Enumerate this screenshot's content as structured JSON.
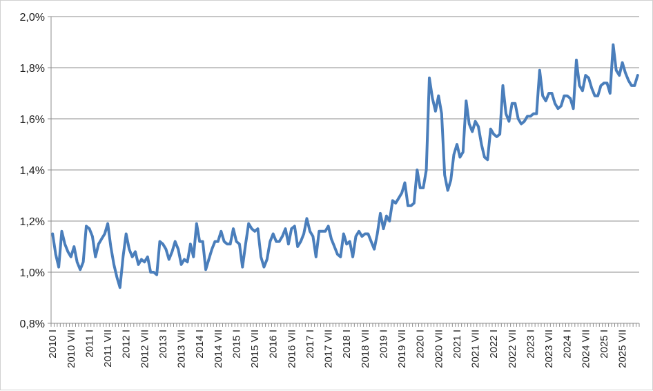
{
  "chart_data": {
    "type": "line",
    "title": "",
    "xlabel": "",
    "ylabel": "",
    "ylim": [
      0.8,
      2.0
    ],
    "y_tick_labels": [
      "0,8%",
      "1,0%",
      "1,2%",
      "1,4%",
      "1,6%",
      "1,8%",
      "2,0%"
    ],
    "y_tick_values": [
      0.8,
      1.0,
      1.2,
      1.4,
      1.6,
      1.8,
      2.0
    ],
    "x_tick_labels": [
      "2010 I",
      "2010 VII",
      "2011 I",
      "2011 VII",
      "2012 I",
      "2012 VII",
      "2013 I",
      "2013 VII",
      "2014 I",
      "2014 VII",
      "2015 I",
      "2015 VII",
      "2016 I",
      "2016 VII",
      "2017 I",
      "2017 VII",
      "2018 I",
      "2018 VII",
      "2019 I",
      "2019 VII",
      "2020 I",
      "2020 VII",
      "2021 I",
      "2021 VII",
      "2022 I",
      "2022 VII",
      "2023 I",
      "2023 VII",
      "2024 I",
      "2024 VII",
      "2025 I",
      "2025 VII"
    ],
    "grid": true,
    "legend": "none",
    "series_color": "#4a7ebb",
    "series": [
      {
        "values": [
          1.15,
          1.07,
          1.02,
          1.16,
          1.11,
          1.08,
          1.06,
          1.1,
          1.04,
          1.01,
          1.04,
          1.18,
          1.17,
          1.14,
          1.06,
          1.11,
          1.13,
          1.15,
          1.19,
          1.1,
          1.03,
          0.98,
          0.94,
          1.06,
          1.15,
          1.09,
          1.06,
          1.08,
          1.03,
          1.05,
          1.04,
          1.06,
          1.0,
          1.0,
          0.99,
          1.12,
          1.11,
          1.09,
          1.05,
          1.08,
          1.12,
          1.09,
          1.03,
          1.05,
          1.04,
          1.11,
          1.06,
          1.19,
          1.12,
          1.12,
          1.01,
          1.05,
          1.09,
          1.12,
          1.12,
          1.16,
          1.12,
          1.11,
          1.11,
          1.17,
          1.12,
          1.11,
          1.02,
          1.11,
          1.19,
          1.17,
          1.16,
          1.17,
          1.06,
          1.02,
          1.05,
          1.12,
          1.15,
          1.12,
          1.12,
          1.14,
          1.17,
          1.11,
          1.17,
          1.18,
          1.1,
          1.12,
          1.15,
          1.21,
          1.16,
          1.14,
          1.06,
          1.16,
          1.16,
          1.16,
          1.18,
          1.13,
          1.1,
          1.07,
          1.06,
          1.15,
          1.11,
          1.12,
          1.06,
          1.14,
          1.16,
          1.14,
          1.15,
          1.15,
          1.12,
          1.09,
          1.15,
          1.23,
          1.17,
          1.22,
          1.2,
          1.28,
          1.27,
          1.29,
          1.31,
          1.35,
          1.26,
          1.26,
          1.27,
          1.4,
          1.33,
          1.33,
          1.4,
          1.76,
          1.68,
          1.63,
          1.69,
          1.62,
          1.38,
          1.32,
          1.36,
          1.46,
          1.5,
          1.45,
          1.47,
          1.67,
          1.58,
          1.55,
          1.59,
          1.57,
          1.5,
          1.45,
          1.44,
          1.56,
          1.54,
          1.53,
          1.54,
          1.73,
          1.62,
          1.59,
          1.66,
          1.66,
          1.6,
          1.58,
          1.59,
          1.61,
          1.61,
          1.62,
          1.62,
          1.79,
          1.69,
          1.67,
          1.7,
          1.7,
          1.66,
          1.64,
          1.65,
          1.69,
          1.69,
          1.68,
          1.64,
          1.83,
          1.73,
          1.71,
          1.77,
          1.76,
          1.72,
          1.69,
          1.69,
          1.73,
          1.74,
          1.74,
          1.7,
          1.89,
          1.79,
          1.77,
          1.82,
          1.78,
          1.75,
          1.73,
          1.73,
          1.77
        ]
      }
    ]
  }
}
